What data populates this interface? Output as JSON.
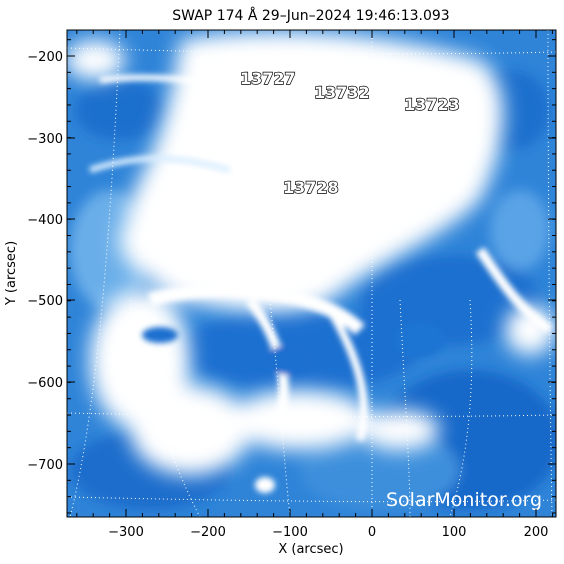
{
  "title": "SWAP 174 Å 29–Jun–2024 19:46:13.093",
  "xlabel": "X (arcsec)",
  "ylabel": "Y (arcsec)",
  "x_ticks": [
    "−300",
    "−200",
    "−100",
    "0",
    "100",
    "200"
  ],
  "y_ticks": [
    "−200",
    "−300",
    "−400",
    "−500",
    "−600",
    "−700"
  ],
  "active_regions": [
    "13727",
    "13732",
    "13723",
    "13728"
  ],
  "watermark": "SolarMonitor.org",
  "colors": {
    "plasma_bright": "#ffffff",
    "plasma_mid": "#4a9ae0",
    "plasma_dark": "#1566c8"
  }
}
